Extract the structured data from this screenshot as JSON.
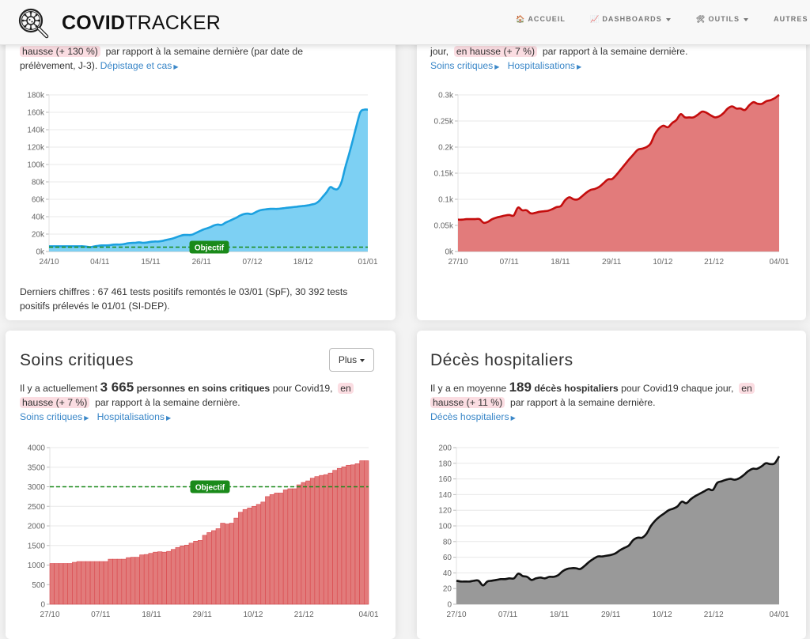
{
  "navbar": {
    "brand_bold": "COVID",
    "brand_light": "TRACKER",
    "logo_icon": "virus-magnifier-icon",
    "items": [
      {
        "label": "ACCUEIL",
        "icon": "🏠"
      },
      {
        "label": "DASHBOARDS",
        "icon": "📈",
        "dropdown": true
      },
      {
        "label": "OUTILS",
        "icon": "🛠",
        "dropdown": true
      },
      {
        "label": "AUTRES"
      }
    ]
  },
  "card_cases": {
    "highlight": "hausse (+ 130 %)",
    "text_after": "par rapport à la semaine dernière (par date de",
    "text_line2": "prélèvement, J-3).",
    "link": "Dépistage et cas",
    "footer_line1": "Derniers chiffres : 67 461 tests positifs remontés le 03/01 (SpF), 30 392 tests",
    "footer_line2": "positifs prélevés le 01/01 (SI-DEP)."
  },
  "card_hosp": {
    "text_before": "jour,",
    "highlight": "en hausse (+ 7 %)",
    "text_after": "par rapport à la semaine dernière.",
    "links": [
      "Soins critiques",
      "Hospitalisations"
    ]
  },
  "card_icu": {
    "title": "Soins critiques",
    "button": "Plus",
    "text1": "Il y a actuellement",
    "value": "3 665",
    "bold_text": "personnes en soins critiques",
    "text2": "pour Covid19,",
    "highlight_a": "en",
    "highlight_b": "hausse (+ 7 %)",
    "text3": "par rapport à la semaine dernière.",
    "links": [
      "Soins critiques",
      "Hospitalisations"
    ]
  },
  "card_deaths": {
    "title": "Décès hospitaliers",
    "text1": "Il y a en moyenne",
    "value": "189",
    "bold_text": "décès hospitaliers",
    "text2": "pour Covid19 chaque jour,",
    "highlight_a": "en",
    "highlight_b": "hausse (+ 11 %)",
    "text3": "par rapport à la semaine dernière.",
    "links": [
      "Décès hospitaliers"
    ]
  },
  "chart_data": [
    {
      "id": "cases",
      "type": "area",
      "color_line": "#1ca1e0",
      "color_fill": "#7dd0f3",
      "ylim": [
        0,
        180000
      ],
      "yticks": [
        "0k",
        "20k",
        "40k",
        "60k",
        "80k",
        "100k",
        "120k",
        "140k",
        "160k",
        "180k"
      ],
      "xticks": [
        "24/10",
        "04/11",
        "15/11",
        "26/11",
        "07/12",
        "18/12",
        "01/01"
      ],
      "objective": {
        "value": 5000,
        "label": "Objectif",
        "color": "#1a8a1a"
      },
      "values": [
        6000,
        6000,
        6000,
        6000,
        6000,
        6000,
        6000,
        6000,
        6000,
        6000,
        5500,
        5000,
        5800,
        6500,
        7000,
        7000,
        7200,
        7800,
        8000,
        8000,
        8500,
        9500,
        9800,
        10000,
        10500,
        10000,
        10300,
        11000,
        11500,
        11500,
        12000,
        13000,
        14000,
        15000,
        16500,
        18000,
        19000,
        19000,
        19200,
        21000,
        23000,
        25000,
        26500,
        28000,
        30000,
        31000,
        30500,
        33000,
        35000,
        37000,
        39000,
        41500,
        43000,
        43500,
        43000,
        45000,
        47000,
        48000,
        48500,
        49000,
        49000,
        49000,
        49500,
        50000,
        50500,
        51000,
        51500,
        52000,
        52500,
        53000,
        54000,
        55000,
        58000,
        63000,
        68000,
        74000,
        72000,
        72000,
        80000,
        97000,
        112000,
        128000,
        145000,
        160000,
        163000,
        163000
      ]
    },
    {
      "id": "hosp",
      "type": "area",
      "color_line": "#c40d0d",
      "color_fill": "#e27b7b",
      "ylim": [
        0,
        300
      ],
      "yticks": [
        "0k",
        "0.05k",
        "0.1k",
        "0.15k",
        "0.2k",
        "0.25k",
        "0.3k"
      ],
      "xticks": [
        "27/10",
        "07/11",
        "18/11",
        "29/11",
        "10/12",
        "21/12",
        "04/01"
      ],
      "values": [
        61,
        61,
        62,
        62,
        62,
        62,
        55,
        57,
        62,
        65,
        67,
        69,
        70,
        69,
        84,
        79,
        79,
        73,
        74,
        76,
        77,
        78,
        81,
        85,
        87,
        98,
        104,
        100,
        100,
        106,
        113,
        118,
        120,
        124,
        131,
        138,
        139,
        147,
        157,
        167,
        177,
        186,
        195,
        197,
        200,
        207,
        225,
        236,
        241,
        238,
        246,
        252,
        263,
        257,
        257,
        257,
        262,
        268,
        266,
        261,
        257,
        259,
        265,
        274,
        278,
        274,
        274,
        271,
        280,
        286,
        283,
        283,
        288,
        290,
        294,
        300
      ]
    },
    {
      "id": "icu",
      "type": "bar",
      "color_bar": "#e27b7b",
      "color_edge": "#d9474c",
      "ylim": [
        0,
        4000
      ],
      "yticks": [
        "0",
        "500",
        "1000",
        "1500",
        "2000",
        "2500",
        "3000",
        "3500",
        "4000"
      ],
      "xticks": [
        "27/10",
        "07/11",
        "18/11",
        "29/11",
        "10/12",
        "21/12",
        "04/01"
      ],
      "objective": {
        "value": 3000,
        "label": "Objectif",
        "color": "#1a8a1a"
      },
      "values": [
        1040,
        1040,
        1040,
        1040,
        1040,
        1070,
        1090,
        1090,
        1090,
        1090,
        1090,
        1090,
        1090,
        1150,
        1150,
        1150,
        1150,
        1190,
        1200,
        1200,
        1260,
        1270,
        1300,
        1330,
        1340,
        1330,
        1350,
        1400,
        1450,
        1490,
        1510,
        1560,
        1610,
        1630,
        1760,
        1830,
        1880,
        1930,
        2070,
        2050,
        2070,
        2200,
        2350,
        2420,
        2460,
        2500,
        2550,
        2610,
        2750,
        2800,
        2840,
        2840,
        2920,
        2950,
        2950,
        3050,
        3110,
        3150,
        3220,
        3260,
        3290,
        3310,
        3350,
        3420,
        3470,
        3510,
        3550,
        3560,
        3590,
        3665,
        3665
      ]
    },
    {
      "id": "deaths",
      "type": "area",
      "color_line": "#111111",
      "color_fill": "#999999",
      "ylim": [
        0,
        200
      ],
      "yticks": [
        "0",
        "20",
        "40",
        "60",
        "80",
        "100",
        "120",
        "140",
        "160",
        "180",
        "200"
      ],
      "xticks": [
        "27/10",
        "07/11",
        "18/11",
        "29/11",
        "10/12",
        "21/12",
        "04/01"
      ],
      "values": [
        30,
        29,
        29,
        29,
        30,
        30,
        24,
        29,
        30,
        31,
        32,
        32,
        33,
        33,
        39,
        36,
        35,
        31,
        33,
        34,
        33,
        35,
        35,
        37,
        42,
        45,
        46,
        46,
        45,
        49,
        54,
        58,
        61,
        61,
        62,
        63,
        65,
        69,
        72,
        75,
        82,
        85,
        85,
        90,
        100,
        107,
        112,
        116,
        120,
        122,
        125,
        131,
        129,
        134,
        138,
        141,
        144,
        147,
        146,
        155,
        157,
        159,
        160,
        159,
        161,
        165,
        170,
        173,
        173,
        176,
        180,
        179,
        180,
        189
      ]
    }
  ]
}
